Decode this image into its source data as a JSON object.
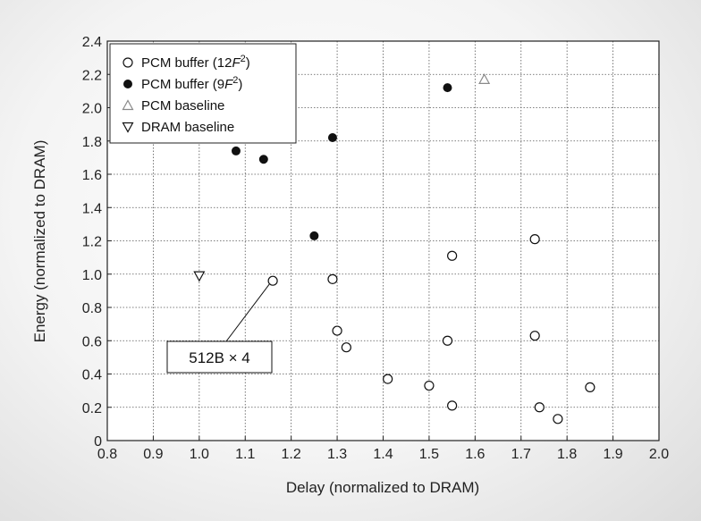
{
  "chart_data": {
    "type": "scatter",
    "xlabel": "Delay (normalized to DRAM)",
    "ylabel": "Energy (normalized to DRAM)",
    "xlim": [
      0.8,
      2.0
    ],
    "ylim": [
      0,
      2.4
    ],
    "x_ticks": [
      "0.8",
      "0.9",
      "1.0",
      "1.1",
      "1.2",
      "1.3",
      "1.4",
      "1.5",
      "1.6",
      "1.7",
      "1.8",
      "1.9",
      "2.0"
    ],
    "y_ticks": [
      "0",
      "0.2",
      "0.4",
      "0.6",
      "0.8",
      "1.0",
      "1.2",
      "1.4",
      "1.6",
      "1.8",
      "2.0",
      "2.2",
      "2.4"
    ],
    "grid": true,
    "legend_position": "top-left",
    "series": [
      {
        "name": "PCM buffer (12F2)",
        "label_parts": {
          "prefix": "PCM buffer (12",
          "italic": "F",
          "sup": "2",
          "suffix": ")"
        },
        "marker": "open-circle",
        "color": "#111111",
        "points": [
          [
            1.16,
            0.96
          ],
          [
            1.29,
            0.97
          ],
          [
            1.3,
            0.66
          ],
          [
            1.32,
            0.56
          ],
          [
            1.55,
            1.11
          ],
          [
            1.54,
            0.6
          ],
          [
            1.41,
            0.37
          ],
          [
            1.5,
            0.33
          ],
          [
            1.55,
            0.21
          ],
          [
            1.73,
            1.21
          ],
          [
            1.73,
            0.63
          ],
          [
            1.74,
            0.2
          ],
          [
            1.78,
            0.13
          ],
          [
            1.85,
            0.32
          ]
        ]
      },
      {
        "name": "PCM buffer (9F2)",
        "label_parts": {
          "prefix": "PCM buffer (9",
          "italic": "F",
          "sup": "2",
          "suffix": ")"
        },
        "marker": "filled-circle",
        "color": "#111111",
        "points": [
          [
            1.08,
            1.74
          ],
          [
            1.14,
            1.69
          ],
          [
            1.29,
            1.82
          ],
          [
            1.25,
            1.23
          ],
          [
            1.54,
            2.12
          ]
        ]
      },
      {
        "name": "PCM baseline",
        "label_parts": {
          "prefix": "PCM baseline",
          "italic": "",
          "sup": "",
          "suffix": ""
        },
        "marker": "triangle-up",
        "color": "#8a8a8a",
        "points": [
          [
            1.62,
            2.17
          ]
        ]
      },
      {
        "name": "DRAM baseline",
        "label_parts": {
          "prefix": "DRAM baseline",
          "italic": "",
          "sup": "",
          "suffix": ""
        },
        "marker": "triangle-down",
        "color": "#111111",
        "points": [
          [
            1.0,
            0.99
          ]
        ]
      }
    ],
    "annotation": {
      "text": "512B × 4",
      "target": [
        1.16,
        0.96
      ]
    }
  }
}
